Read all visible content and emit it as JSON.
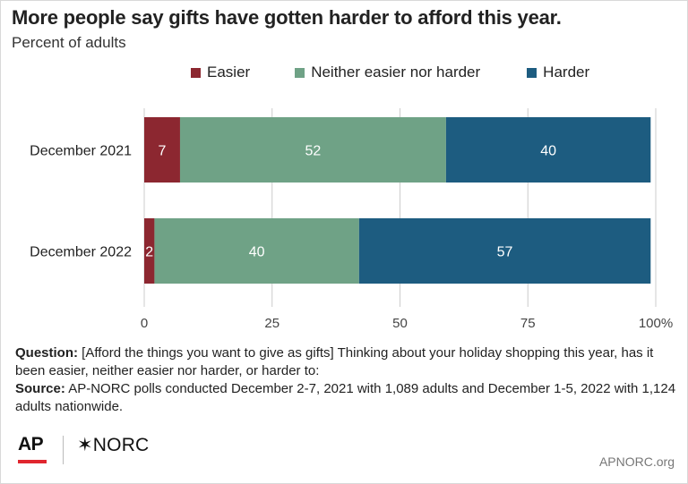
{
  "title": "More people say gifts have gotten harder to afford this year.",
  "subtitle": "Percent of adults",
  "legend": [
    {
      "label": "Easier",
      "color": "#8c2730"
    },
    {
      "label": "Neither easier nor harder",
      "color": "#6fa286"
    },
    {
      "label": "Harder",
      "color": "#1d5c80"
    }
  ],
  "chart_data": {
    "type": "bar",
    "orientation": "horizontal",
    "stacked": true,
    "categories": [
      "December 2021",
      "December 2022"
    ],
    "series": [
      {
        "name": "Easier",
        "values": [
          7,
          2
        ],
        "color": "#8c2730"
      },
      {
        "name": "Neither easier nor harder",
        "values": [
          52,
          40
        ],
        "color": "#6fa286"
      },
      {
        "name": "Harder",
        "values": [
          40,
          57
        ],
        "color": "#1d5c80"
      }
    ],
    "xlim": [
      0,
      100
    ],
    "xticks": [
      "0",
      "25",
      "50",
      "75",
      "100%"
    ],
    "grid": true,
    "legend_position": "top"
  },
  "notes": {
    "question_label": "Question:",
    "question_text": " [Afford the things you want to give as gifts] Thinking about your holiday shopping this year, has it been easier, neither easier nor harder, or harder to:",
    "source_label": "Source:",
    "source_text": " AP-NORC polls conducted December 2-7, 2021 with 1,089 adults and December 1-5, 2022 with 1,124 adults nationwide."
  },
  "footer": {
    "ap_logo": "AP",
    "norc_logo": "✶NORC",
    "url": "APNORC.org"
  }
}
